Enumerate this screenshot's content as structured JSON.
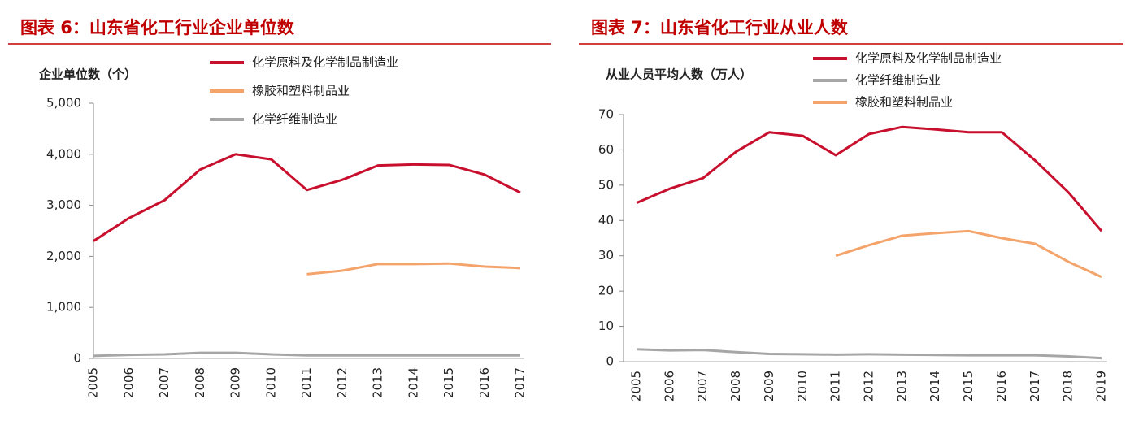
{
  "chart_data": [
    {
      "type": "line",
      "title": "图表 6：山东省化工行业企业单位数",
      "y_label": "企业单位数（个）",
      "categories": [
        "2005",
        "2006",
        "2007",
        "2008",
        "2009",
        "2010",
        "2011",
        "2012",
        "2013",
        "2014",
        "2015",
        "2016",
        "2017"
      ],
      "series": [
        {
          "name": "化学原料及化学制品制造业",
          "color": "#c8102e",
          "values": [
            2300,
            2750,
            3100,
            3700,
            4000,
            3900,
            3300,
            3500,
            3780,
            3800,
            3790,
            3600,
            3250
          ]
        },
        {
          "name": "橡胶和塑料制品业",
          "color": "#f4a46a",
          "values": [
            null,
            null,
            null,
            null,
            null,
            null,
            1650,
            1720,
            1850,
            1850,
            1860,
            1800,
            1770
          ]
        },
        {
          "name": "化学纤维制造业",
          "color": "#a6a6a6",
          "values": [
            50,
            70,
            80,
            110,
            110,
            80,
            60,
            60,
            60,
            60,
            60,
            60,
            60
          ]
        }
      ],
      "ylim": [
        0,
        5000
      ],
      "yticks": [
        0,
        {
          "value": 1000,
          "label": "1,000"
        },
        {
          "value": 2000,
          "label": "2,000"
        },
        {
          "value": 3000,
          "label": "3,000"
        },
        {
          "value": 4000,
          "label": "4,000"
        },
        {
          "value": 5000,
          "label": "5,000"
        }
      ]
    },
    {
      "type": "line",
      "title": "图表 7：山东省化工行业从业人数",
      "y_label": "从业人员平均人数（万人）",
      "categories": [
        "2005",
        "2006",
        "2007",
        "2008",
        "2009",
        "2010",
        "2011",
        "2012",
        "2013",
        "2014",
        "2015",
        "2016",
        "2017",
        "2018",
        "2019"
      ],
      "series": [
        {
          "name": "化学原料及化学制品制造业",
          "color": "#c8102e",
          "values": [
            45,
            49,
            52,
            59.5,
            65,
            64,
            58.5,
            64.5,
            66.5,
            65.8,
            65,
            65,
            57,
            48,
            37
          ]
        },
        {
          "name": "化学纤维制造业",
          "color": "#a6a6a6",
          "values": [
            3.5,
            3.2,
            3.3,
            2.7,
            2.2,
            2.1,
            2.0,
            2.1,
            2.0,
            1.9,
            1.8,
            1.8,
            1.8,
            1.5,
            1.0
          ]
        },
        {
          "name": "橡胶和塑料制品业",
          "color": "#f4a46a",
          "values": [
            null,
            null,
            null,
            null,
            null,
            null,
            30,
            33,
            35.7,
            36.4,
            37,
            35,
            33.4,
            28.3,
            24
          ]
        }
      ],
      "ylim": [
        0,
        70
      ],
      "yticks": [
        0,
        10,
        20,
        30,
        40,
        50,
        60,
        70
      ]
    }
  ]
}
